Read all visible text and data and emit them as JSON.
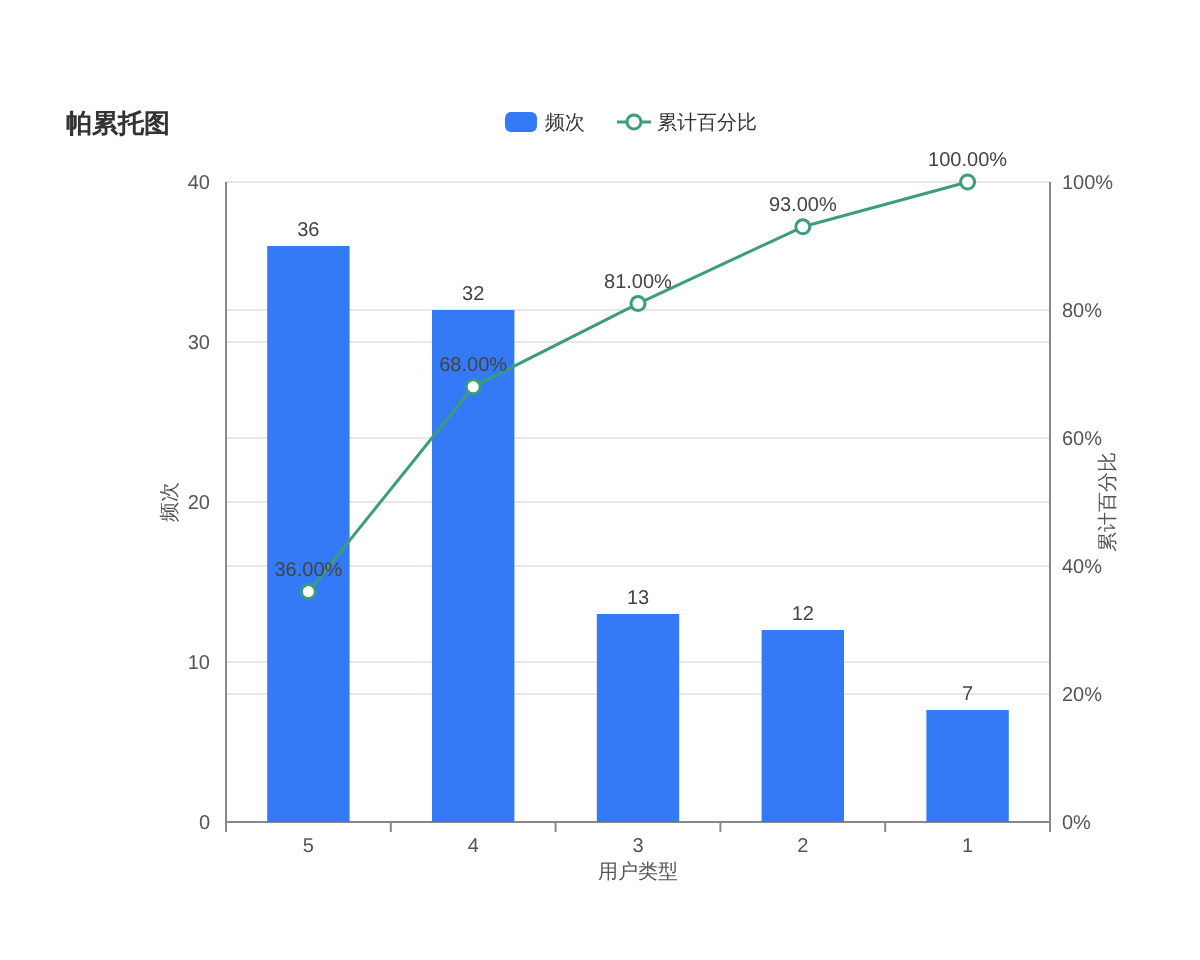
{
  "chart_data": {
    "type": "bar",
    "title": "帕累托图",
    "xlabel": "用户类型",
    "ylabel": "频次",
    "y2label": "累计百分比",
    "categories": [
      "5",
      "4",
      "3",
      "2",
      "1"
    ],
    "series": [
      {
        "name": "频次",
        "color": "#3479f6",
        "values": [
          36,
          32,
          13,
          12,
          7
        ],
        "value_labels": [
          "36",
          "32",
          "13",
          "12",
          "7"
        ]
      },
      {
        "name": "累计百分比",
        "type": "line",
        "axis": "y2",
        "color": "#3c9d7a",
        "marker": "circle",
        "values": [
          36,
          68,
          81,
          93,
          100
        ],
        "value_labels": [
          "36.00%",
          "68.00%",
          "81.00%",
          "93.00%",
          "100.00%"
        ]
      }
    ],
    "ylim": [
      0,
      40
    ],
    "yticks": [
      0,
      10,
      20,
      30,
      40
    ],
    "y2lim": [
      0,
      100
    ],
    "y2ticks": [
      {
        "value": 0,
        "label": "0%"
      },
      {
        "value": 20,
        "label": "20%"
      },
      {
        "value": 40,
        "label": "40%"
      },
      {
        "value": 60,
        "label": "60%"
      },
      {
        "value": 80,
        "label": "80%"
      },
      {
        "value": 100,
        "label": "100%"
      }
    ],
    "grid": "y",
    "legend": "top"
  }
}
